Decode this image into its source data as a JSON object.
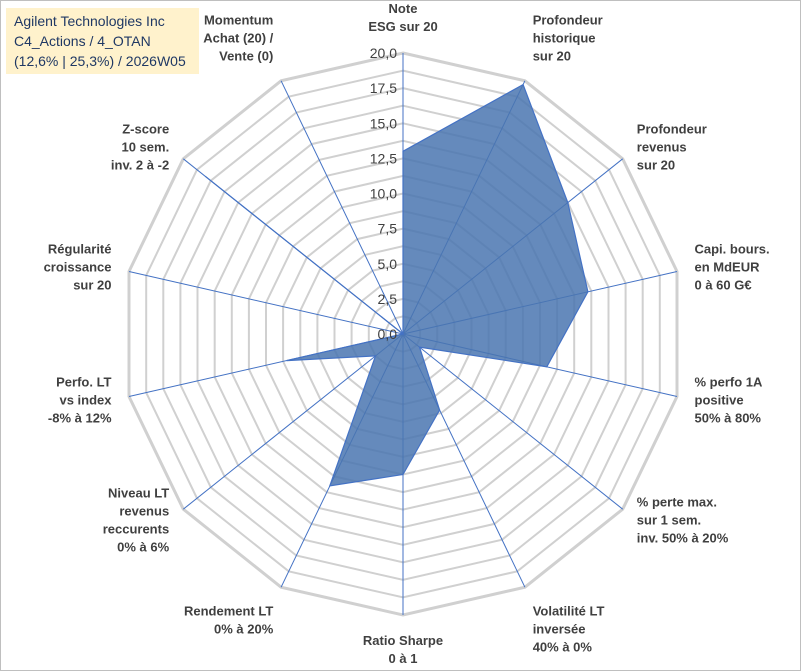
{
  "title_box": {
    "line1": "Agilent Technologies Inc",
    "line2": "C4_Actions / 4_OTAN",
    "line3": "(12,6% | 25,3%) / 2026W05"
  },
  "colors": {
    "fill": "#4a76b0",
    "stroke": "#4472c4",
    "grid": "#d0d0d0",
    "spoke": "#4472c4",
    "title_bg": "#fff2cc"
  },
  "chart_data": {
    "type": "radar",
    "ylim": [
      0,
      20
    ],
    "ticks": [
      "0,0",
      "2,5",
      "5,0",
      "7,5",
      "10,0",
      "12,5",
      "15,0",
      "17,5",
      "20,0"
    ],
    "axes": [
      {
        "label": [
          "Note",
          "ESG sur 20"
        ],
        "value": 13.0
      },
      {
        "label": [
          "Profondeur",
          "historique",
          "sur 20"
        ],
        "value": 19.7
      },
      {
        "label": [
          "Profondeur",
          "revenus",
          "sur 20"
        ],
        "value": 15.0
      },
      {
        "label": [
          "Capi. bours.",
          "en MdEUR",
          "0 à 60 G€"
        ],
        "value": 13.5
      },
      {
        "label": [
          "% perfo 1A",
          "positive",
          "50% à 80%"
        ],
        "value": 10.5
      },
      {
        "label": [
          "% perte max.",
          "sur 1 sem.",
          "inv. 50% à 20%"
        ],
        "value": 1.5
      },
      {
        "label": [
          "Volatilité LT",
          "inversée",
          "40% à 0%"
        ],
        "value": 6.0
      },
      {
        "label": [
          "Ratio Sharpe",
          "0 à 1"
        ],
        "value": 10.0
      },
      {
        "label": [
          "Rendement LT",
          "0% à 20%"
        ],
        "value": 12.0
      },
      {
        "label": [
          "Niveau LT",
          "revenus",
          "reccurents",
          "0% à 6%"
        ],
        "value": 2.5
      },
      {
        "label": [
          "Perfo. LT",
          "vs index",
          "-8% à 12%"
        ],
        "value": 8.5
      },
      {
        "label": [
          "Régularité",
          "croissance",
          "sur 20"
        ],
        "value": 0.0
      },
      {
        "label": [
          "Z-score",
          "10 sem.",
          "inv. 2 à -2"
        ],
        "value": 18.0
      },
      {
        "label": [
          "Momentum",
          "Achat (20) /",
          "Vente (0)"
        ],
        "value": 0.0
      }
    ]
  }
}
